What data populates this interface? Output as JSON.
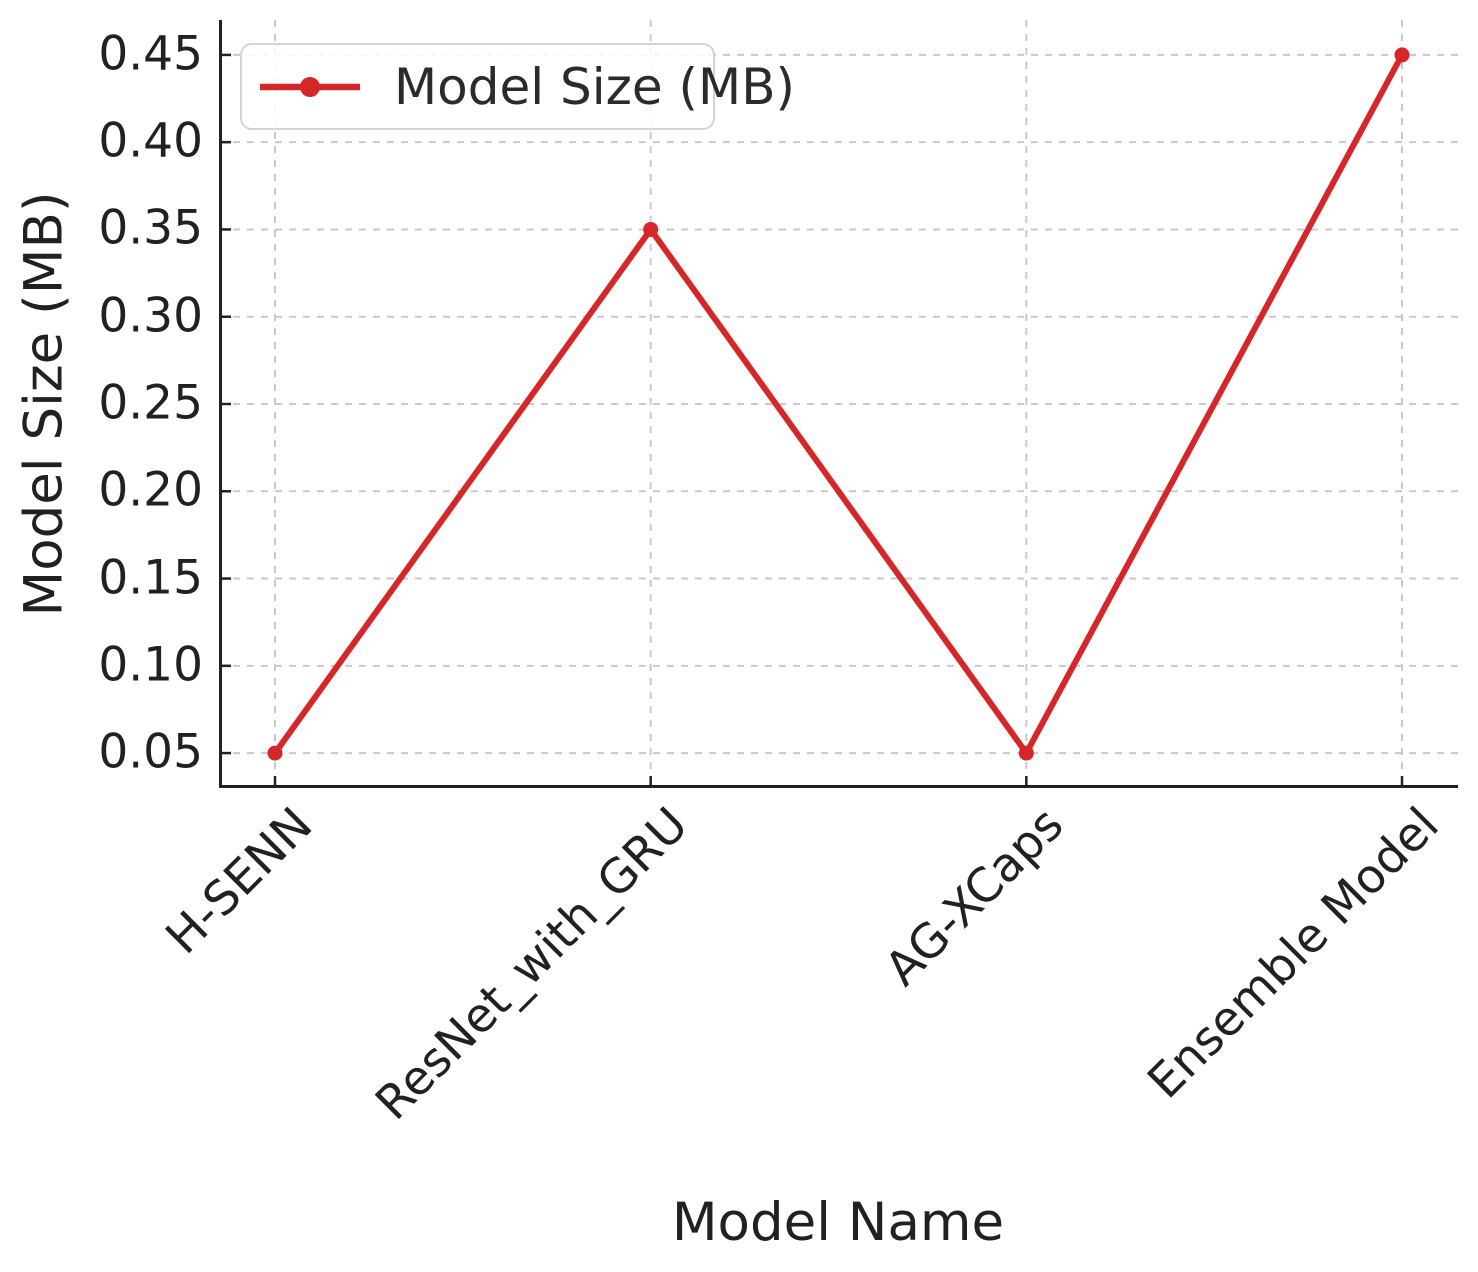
{
  "chart_data": {
    "type": "line",
    "categories": [
      "H-SENN",
      "ResNet_with_GRU",
      "AG-XCaps",
      "Ensemble Model"
    ],
    "series": [
      {
        "name": "Model Size (MB)",
        "color": "#d62728",
        "marker": "circle",
        "values": [
          0.05,
          0.35,
          0.05,
          0.45
        ]
      }
    ],
    "title": "",
    "xlabel": "Model Name",
    "ylabel": "Model Size (MB)",
    "ytick_values": [
      0.05,
      0.1,
      0.15,
      0.2,
      0.25,
      0.3,
      0.35,
      0.4,
      0.45
    ],
    "ytick_labels": [
      "0.05",
      "0.10",
      "0.15",
      "0.20",
      "0.25",
      "0.30",
      "0.35",
      "0.40",
      "0.45"
    ],
    "ylim": [
      0.03,
      0.47
    ],
    "grid": {
      "visible": true,
      "style": "dashed",
      "color": "#c9c9c9"
    },
    "axis_color": "#212121",
    "text_color": "#212121",
    "legend": {
      "position": "upper-left",
      "entries": [
        "Model Size (MB)"
      ]
    }
  }
}
